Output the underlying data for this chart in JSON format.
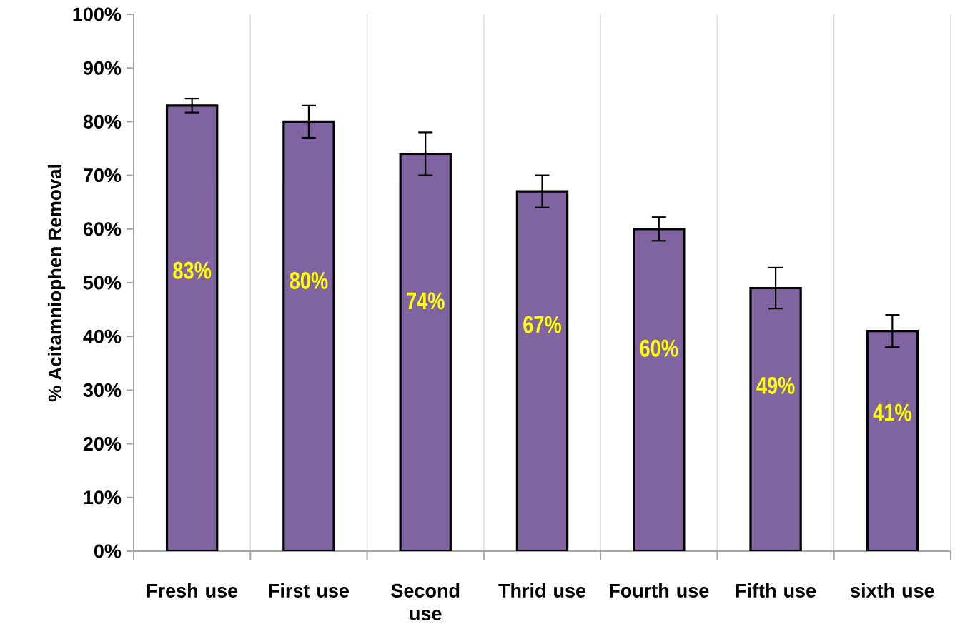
{
  "chart_data": {
    "type": "bar",
    "ylabel": "% Acitamniophen Removal",
    "categories": [
      "Fresh use",
      "First use",
      "Second use",
      "Thrid use",
      "Fourth use",
      "Fifth use",
      "sixth use"
    ],
    "values": [
      83,
      80,
      74,
      67,
      60,
      49,
      41
    ],
    "errors": [
      1.3,
      3,
      4,
      3,
      2.2,
      3.8,
      3
    ],
    "value_labels": [
      "83%",
      "80%",
      "74%",
      "67%",
      "60%",
      "49%",
      "41%"
    ],
    "color": "#8064a2",
    "ylim": [
      0,
      100
    ],
    "yticks": [
      {
        "value": 0,
        "label": "0%"
      },
      {
        "value": 10,
        "label": "10%"
      },
      {
        "value": 20,
        "label": "20%"
      },
      {
        "value": 30,
        "label": "30%"
      },
      {
        "value": 40,
        "label": "40%"
      },
      {
        "value": 50,
        "label": "50%"
      },
      {
        "value": 60,
        "label": "60%"
      },
      {
        "value": 70,
        "label": "70%"
      },
      {
        "value": 80,
        "label": "80%"
      },
      {
        "value": 90,
        "label": "90%"
      },
      {
        "value": 100,
        "label": "100%"
      }
    ],
    "grid": "x"
  }
}
